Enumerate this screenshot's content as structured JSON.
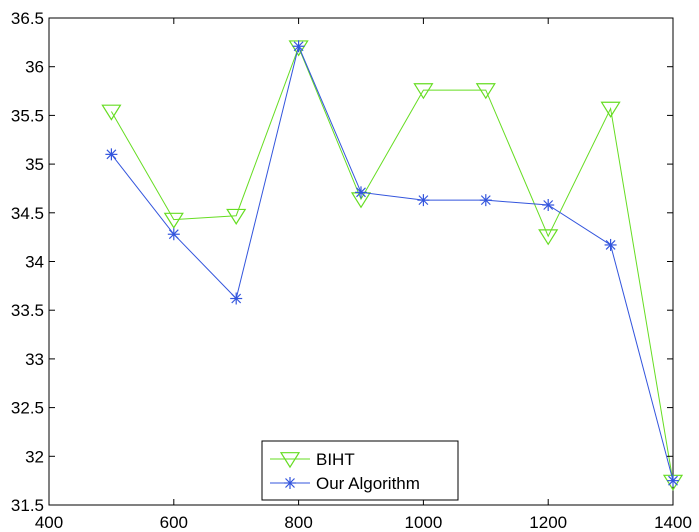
{
  "chart_data": {
    "type": "line",
    "title": "",
    "xlabel": "",
    "ylabel": "",
    "xlim": [
      400,
      1400
    ],
    "ylim": [
      31.5,
      36.5
    ],
    "x_ticks": [
      400,
      600,
      800,
      1000,
      1200,
      1400
    ],
    "y_ticks": [
      31.5,
      32,
      32.5,
      33,
      33.5,
      34,
      34.5,
      35,
      35.5,
      36,
      36.5
    ],
    "grid": false,
    "legend_position": "bottom-center",
    "x": [
      500,
      600,
      700,
      800,
      900,
      1000,
      1100,
      1200,
      1300,
      1400
    ],
    "series": [
      {
        "name": "BIHT",
        "color": "#66dd22",
        "marker": "triangle-down",
        "values": [
          35.54,
          34.43,
          34.47,
          36.2,
          34.64,
          35.76,
          35.76,
          34.26,
          35.57,
          31.74
        ]
      },
      {
        "name": "Our Algorithm",
        "color": "#3355dd",
        "marker": "asterisk",
        "values": [
          35.1,
          34.28,
          33.62,
          36.21,
          34.71,
          34.63,
          34.63,
          34.58,
          34.17,
          31.75
        ]
      }
    ]
  }
}
